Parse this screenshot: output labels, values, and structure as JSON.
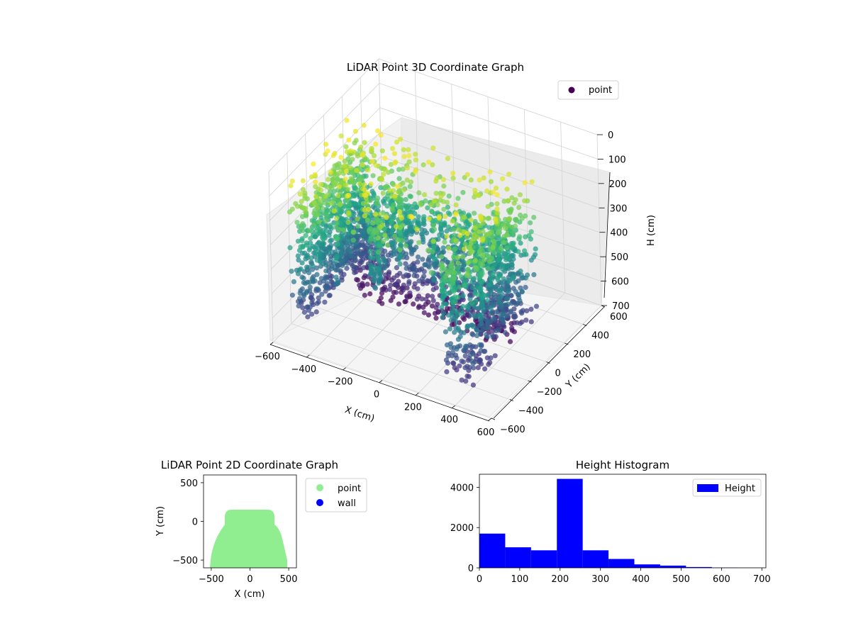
{
  "chart_data": [
    {
      "type": "scatter3d",
      "title": "LiDAR Point 3D Coordinate Graph",
      "xlabel": "X (cm)",
      "ylabel": "Y (cm)",
      "zlabel": "H (cm)",
      "xlim": [
        -600,
        600
      ],
      "ylim": [
        -600,
        600
      ],
      "zlim": [
        700,
        0
      ],
      "z_inverted": true,
      "xticks": [
        -600,
        -400,
        -200,
        0,
        200,
        400,
        600
      ],
      "yticks": [
        -600,
        -400,
        -200,
        0,
        200,
        400,
        600
      ],
      "zticks": [
        0,
        100,
        200,
        300,
        400,
        500,
        600,
        700
      ],
      "colormap": "viridis",
      "legend": {
        "placement": "top-right",
        "entries": [
          {
            "label": "point",
            "color": "#440154"
          }
        ]
      },
      "grid": true,
      "point_cloud": {
        "x_range": [
          -500,
          500
        ],
        "y_range": [
          -600,
          140
        ],
        "h_range": [
          0,
          700
        ],
        "note_series": "point"
      }
    },
    {
      "type": "scatter",
      "title": "LiDAR Point 2D Coordinate Graph",
      "xlabel": "X (cm)",
      "ylabel": "Y (cm)",
      "xlim": [
        -600,
        600
      ],
      "ylim": [
        -600,
        600
      ],
      "xticks": [
        -500,
        0,
        500
      ],
      "yticks": [
        -500,
        0,
        500
      ],
      "series": [
        {
          "name": "point",
          "color": "#90ee90"
        },
        {
          "name": "wall",
          "color": "#0000ff"
        }
      ],
      "legend": {
        "placement": "outside-right"
      }
    },
    {
      "type": "bar",
      "title": "Height Histogram",
      "xlim": [
        0,
        710
      ],
      "ylim": [
        0,
        4650
      ],
      "xticks": [
        0,
        100,
        200,
        300,
        400,
        500,
        600,
        700
      ],
      "yticks": [
        0,
        2000,
        4000
      ],
      "bin_edges": [
        0,
        64,
        128,
        192,
        256,
        320,
        384,
        448,
        512,
        576,
        640,
        704
      ],
      "values": [
        1700,
        1020,
        870,
        4420,
        870,
        440,
        170,
        110,
        40,
        10,
        5
      ],
      "series": [
        {
          "name": "Height",
          "color": "#0000ff"
        }
      ],
      "legend": {
        "placement": "top-right"
      }
    }
  ]
}
